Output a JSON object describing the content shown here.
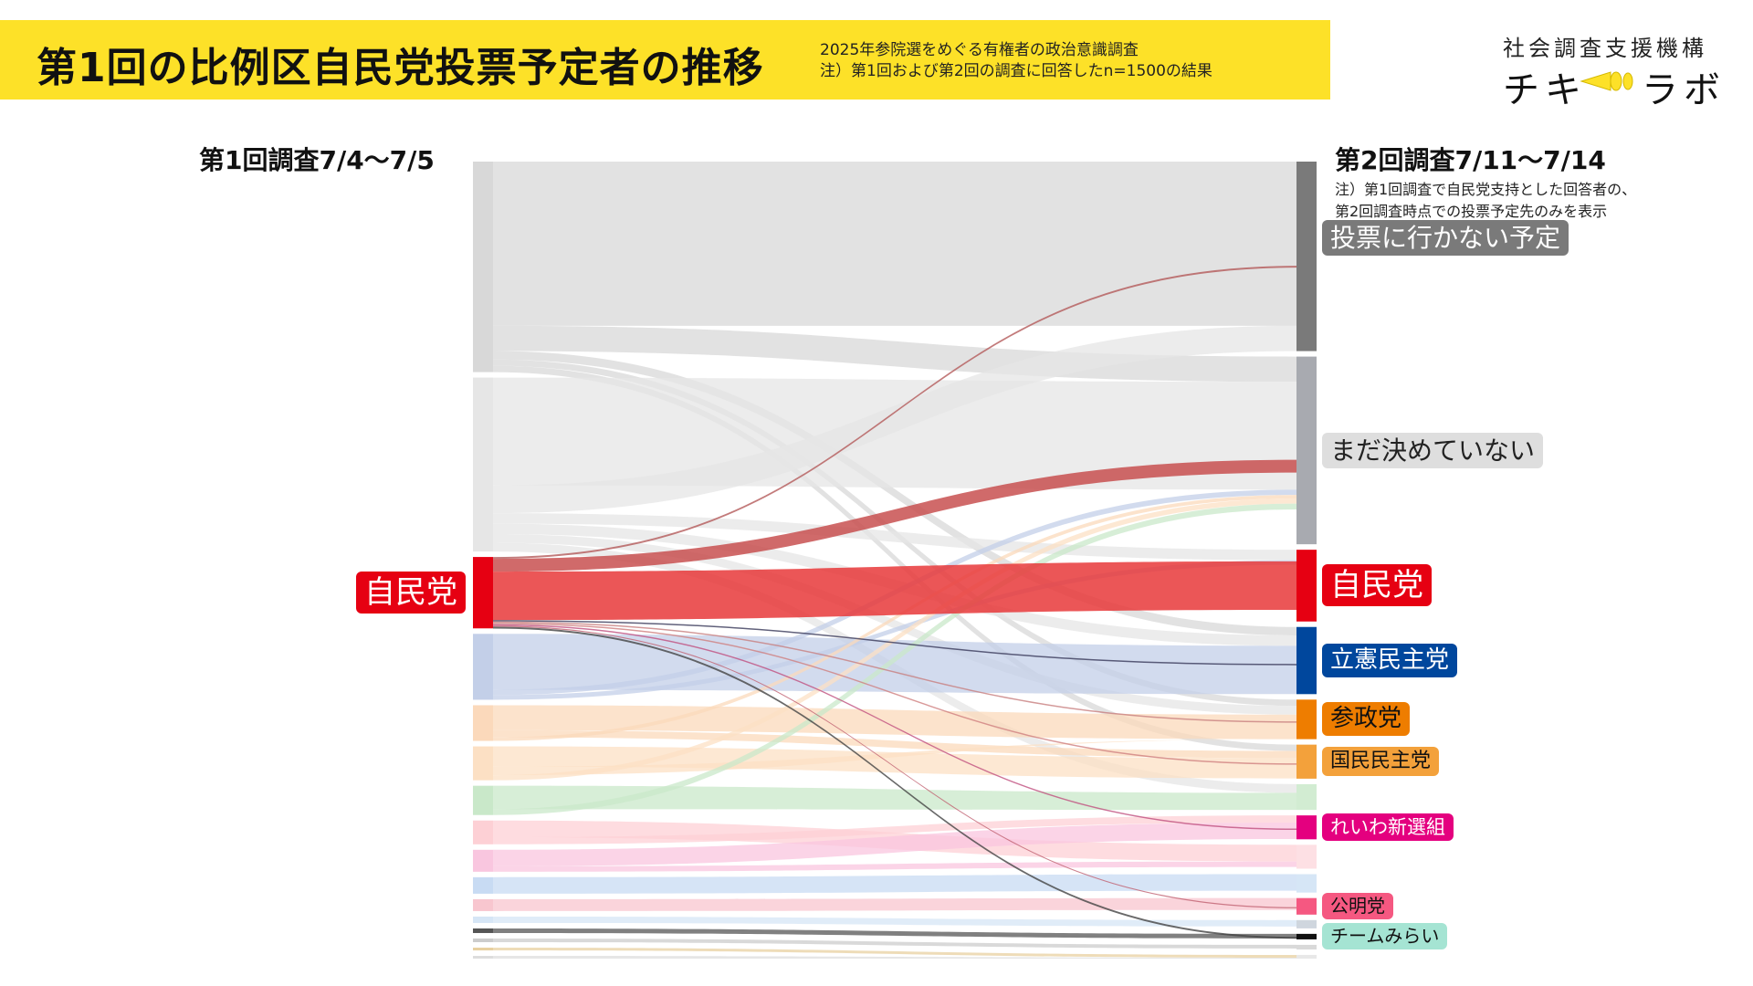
{
  "header": {
    "title": "第1回の比例区自民党投票予定者の推移",
    "subtitle_line1": "2025年参院選をめぐる有権者の政治意識調査",
    "subtitle_line2": "注）第1回および第2回の調査に回答したn=1500の結果",
    "org_name": "社会調査支援機構",
    "logo_left": "チキ",
    "logo_right": "ラボ"
  },
  "columns": {
    "left_heading": "第1回調査7/4〜7/5",
    "right_heading": "第2回調査7/11〜7/14",
    "right_note_line1": "注）第1回調査で自民党支持とした回答者の、",
    "right_note_line2": "第2回調査時点での投票予定先のみを表示"
  },
  "colors": {
    "banner": "#fde128",
    "ldp": "#e60012",
    "cdp": "#00479d",
    "sansei": "#ee7d00",
    "dpfp": "#f3a13b",
    "reiwa": "#e4007f",
    "komeito": "#f55881",
    "team_mirai": "#a5e4d3",
    "not_voting": "#7a7a7a",
    "undecided": "#a8aab0",
    "background_flow": "#dcdcdc"
  },
  "chart_data": {
    "type": "sankey",
    "title": "第1回の比例区自民党投票予定者の推移",
    "left_nodes": [
      {
        "name": "",
        "weight": 23,
        "color": "#d8d8d8"
      },
      {
        "name": "",
        "weight": 19,
        "color": "#e6e6e6"
      },
      {
        "name": "自民党",
        "weight": 7.8,
        "color": "#e60012",
        "highlight": true
      },
      {
        "name": "",
        "weight": 7.2,
        "color": "#c3cfe8"
      },
      {
        "name": "",
        "weight": 3.9,
        "color": "#fbd9bb"
      },
      {
        "name": "",
        "weight": 3.7,
        "color": "#fce0c4"
      },
      {
        "name": "",
        "weight": 3.2,
        "color": "#c9e8c9"
      },
      {
        "name": "",
        "weight": 2.6,
        "color": "#fdd0d5"
      },
      {
        "name": "",
        "weight": 2.4,
        "color": "#f9c6df"
      },
      {
        "name": "",
        "weight": 1.8,
        "color": "#c8dbf3"
      },
      {
        "name": "",
        "weight": 1.3,
        "color": "#f8c6cf"
      },
      {
        "name": "",
        "weight": 0.7,
        "color": "#d6e6f6"
      },
      {
        "name": "",
        "weight": 0.5,
        "color": "#555555"
      },
      {
        "name": "",
        "weight": 0.4,
        "color": "#cccccc"
      },
      {
        "name": "",
        "weight": 0.3,
        "color": "#e8d0a0"
      },
      {
        "name": "",
        "weight": 0.3,
        "color": "#dddddd"
      }
    ],
    "right_nodes": [
      {
        "name": "投票に行かない予定",
        "weight": 20.6,
        "color": "#7a7a7a",
        "label_bg": "#7a7a7a",
        "label_fg": "#ffffff"
      },
      {
        "name": "まだ決めていない",
        "weight": 20.4,
        "color": "#a8aab0",
        "label_bg": "#dedede",
        "label_fg": "#222222"
      },
      {
        "name": "自民党",
        "weight": 7.8,
        "color": "#e60012",
        "label_bg": "#e60012",
        "label_fg": "#ffffff"
      },
      {
        "name": "立憲民主党",
        "weight": 7.3,
        "color": "#00479d",
        "label_bg": "#00479d",
        "label_fg": "#ffffff"
      },
      {
        "name": "参政党",
        "weight": 4.3,
        "color": "#ee7d00",
        "label_bg": "#ee7d00",
        "label_fg": "#111111"
      },
      {
        "name": "国民民主党",
        "weight": 3.7,
        "color": "#f3a13b",
        "label_bg": "#f3a13b",
        "label_fg": "#111111"
      },
      {
        "name": "",
        "weight": 2.8,
        "color": "#d2ecd2"
      },
      {
        "name": "れいわ新選組",
        "weight": 2.6,
        "color": "#e4007f",
        "label_bg": "#e4007f",
        "label_fg": "#ffffff"
      },
      {
        "name": "",
        "weight": 2.6,
        "color": "#fde0e4"
      },
      {
        "name": "",
        "weight": 2.0,
        "color": "#d6e6f6"
      },
      {
        "name": "公明党",
        "weight": 1.8,
        "color": "#f55881",
        "label_bg": "#f55881",
        "label_fg": "#111111"
      },
      {
        "name": "",
        "weight": 0.9,
        "color": "#cfd6de"
      },
      {
        "name": "チームみらい",
        "weight": 0.6,
        "color": "#111111",
        "label_bg": "#a5e4d3",
        "label_fg": "#111111"
      },
      {
        "name": "",
        "weight": 0.5,
        "color": "#d9d9d9"
      },
      {
        "name": "",
        "weight": 0.4,
        "color": "#e8e8e8"
      }
    ],
    "ldp_flows": [
      {
        "to": "投票に行かない予定",
        "value": 0.2,
        "color": "#b45a5a"
      },
      {
        "to": "まだ決めていない",
        "value": 1.4,
        "color": "#c85050"
      },
      {
        "to": "自民党",
        "value": 5.3,
        "color": "#e8383a"
      },
      {
        "to": "立憲民主党",
        "value": 0.15,
        "color": "#3a3a5a"
      },
      {
        "to": "参政党",
        "value": 0.15,
        "color": "#c88080"
      },
      {
        "to": "国民民主党",
        "value": 0.15,
        "color": "#d08080"
      },
      {
        "to": "れいわ新選組",
        "value": 0.15,
        "color": "#c05080"
      },
      {
        "to": "公明党",
        "value": 0.1,
        "color": "#c06070"
      },
      {
        "to": "チームみらい",
        "value": 0.2,
        "color": "#444444"
      }
    ]
  }
}
